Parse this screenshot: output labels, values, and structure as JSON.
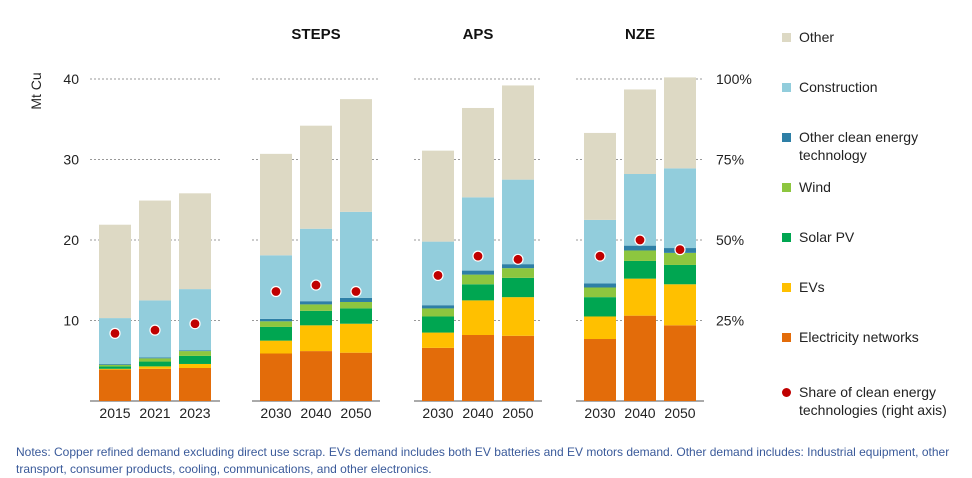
{
  "chart_data": {
    "type": "bar",
    "stacked": true,
    "ylabel": "Mt Cu",
    "ylim": [
      0,
      40
    ],
    "yticks": [
      10,
      20,
      30,
      40
    ],
    "y2lim_percent": [
      0,
      100
    ],
    "y2ticks": [
      "25%",
      "50%",
      "75%",
      "100%"
    ],
    "grid": "dotted",
    "legend_position": "right",
    "groups": [
      {
        "label": "",
        "categories": [
          "2015",
          "2021",
          "2023"
        ]
      },
      {
        "label": "STEPS",
        "categories": [
          "2030",
          "2040",
          "2050"
        ]
      },
      {
        "label": "APS",
        "categories": [
          "2030",
          "2040",
          "2050"
        ]
      },
      {
        "label": "NZE",
        "categories": [
          "2030",
          "2040",
          "2050"
        ]
      }
    ],
    "series": [
      {
        "name": "Electricity networks",
        "color": "#e36c0a",
        "values": [
          3.9,
          4.0,
          4.1,
          5.9,
          6.2,
          6.0,
          6.6,
          8.2,
          8.1,
          7.7,
          10.6,
          9.4
        ]
      },
      {
        "name": "EVs",
        "color": "#ffc000",
        "values": [
          0.1,
          0.3,
          0.5,
          1.6,
          3.2,
          3.6,
          1.9,
          4.3,
          4.8,
          2.8,
          4.6,
          5.1
        ]
      },
      {
        "name": "Solar PV",
        "color": "#00a651",
        "values": [
          0.3,
          0.6,
          1.0,
          1.7,
          1.8,
          1.9,
          2.0,
          2.0,
          2.4,
          2.4,
          2.2,
          2.4
        ]
      },
      {
        "name": "Wind",
        "color": "#8dc63f",
        "values": [
          0.2,
          0.4,
          0.6,
          0.7,
          0.8,
          0.8,
          1.0,
          1.2,
          1.2,
          1.2,
          1.3,
          1.5
        ]
      },
      {
        "name": "Other clean energy technology",
        "color": "#2e7fa6",
        "values": [
          0.1,
          0.1,
          0.1,
          0.3,
          0.4,
          0.5,
          0.4,
          0.5,
          0.5,
          0.5,
          0.6,
          0.6
        ]
      },
      {
        "name": "Construction",
        "color": "#92cddc",
        "values": [
          5.7,
          7.1,
          7.6,
          7.9,
          9.0,
          10.7,
          7.9,
          9.1,
          10.5,
          7.9,
          8.9,
          9.9
        ]
      },
      {
        "name": "Other",
        "color": "#ddd9c4",
        "values": [
          11.6,
          12.4,
          11.9,
          12.6,
          12.8,
          14.0,
          11.3,
          11.1,
          11.7,
          10.8,
          10.5,
          11.3
        ]
      }
    ],
    "share_series": {
      "name": "Share of clean energy technologies (right axis)",
      "color": "#c00000",
      "values_percent": [
        21,
        22,
        24,
        34,
        36,
        34,
        39,
        45,
        44,
        45,
        50,
        47
      ]
    }
  },
  "notes": "Notes: Copper refined demand excluding direct use scrap. EVs demand includes both EV batteries and EV motors demand. Other demand includes: Industrial equipment, other transport, consumer products, cooling, communications, and other electronics."
}
